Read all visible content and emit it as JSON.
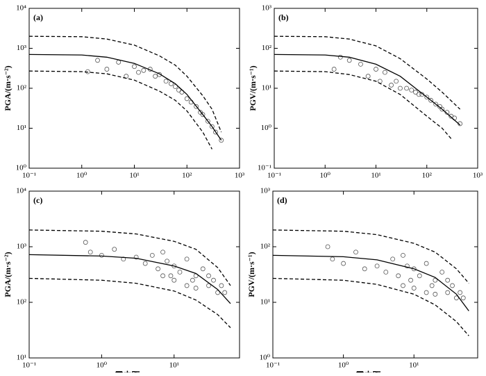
{
  "chart_data": [
    {
      "type": "scatter",
      "label": "(a)",
      "ylabel": "PGA/(m·s⁻²)",
      "xlog": true,
      "ylog": true,
      "xlim": [
        0.1,
        1000
      ],
      "ylim": [
        1,
        10000
      ],
      "xticks": [
        {
          "value": 0.1,
          "label": "10⁻¹"
        },
        {
          "value": 1,
          "label": "10⁰"
        },
        {
          "value": 10,
          "label": "10¹"
        },
        {
          "value": 100,
          "label": "10²"
        },
        {
          "value": 1000,
          "label": "10³"
        }
      ],
      "yticks": [
        {
          "value": 1,
          "label": "10⁰"
        },
        {
          "value": 10,
          "label": "10¹"
        },
        {
          "value": 100,
          "label": "10²"
        },
        {
          "value": 1000,
          "label": "10³"
        },
        {
          "value": 10000,
          "label": "10⁴"
        }
      ],
      "points": {
        "color": "#555555",
        "x": [
          1.3,
          2,
          3,
          5,
          7,
          10,
          12,
          15,
          20,
          25,
          30,
          40,
          50,
          60,
          70,
          80,
          100,
          120,
          150,
          180,
          200,
          250,
          300,
          350,
          450
        ],
        "y": [
          260,
          500,
          300,
          450,
          200,
          350,
          250,
          280,
          300,
          200,
          220,
          150,
          130,
          110,
          90,
          80,
          55,
          45,
          35,
          25,
          22,
          15,
          11,
          8,
          5
        ]
      },
      "curves": [
        {
          "style": "solid",
          "x": [
            0.1,
            1,
            3,
            10,
            30,
            60,
            100,
            200,
            300,
            450
          ],
          "values": [
            700,
            680,
            600,
            420,
            230,
            130,
            70,
            22,
            11,
            5
          ]
        },
        {
          "style": "dashed",
          "x": [
            0.1,
            1,
            3,
            10,
            30,
            60,
            100,
            200,
            300,
            450
          ],
          "values": [
            2000,
            1950,
            1700,
            1200,
            650,
            380,
            200,
            65,
            30,
            8
          ]
        },
        {
          "style": "dashed",
          "x": [
            0.1,
            1,
            3,
            10,
            30,
            60,
            100,
            200,
            300
          ],
          "values": [
            270,
            260,
            230,
            160,
            85,
            50,
            27,
            8,
            3
          ]
        }
      ]
    },
    {
      "type": "scatter",
      "label": "(b)",
      "ylabel": "PGV/(m·s⁻¹)",
      "xlog": true,
      "ylog": true,
      "xlim": [
        0.1,
        1000
      ],
      "ylim": [
        0.1,
        1000
      ],
      "xticks": [
        {
          "value": 0.1,
          "label": "10⁻¹"
        },
        {
          "value": 1,
          "label": "10⁰"
        },
        {
          "value": 10,
          "label": "10¹"
        },
        {
          "value": 100,
          "label": "10²"
        },
        {
          "value": 1000,
          "label": "10³"
        }
      ],
      "yticks": [
        {
          "value": 0.1,
          "label": "10⁻¹"
        },
        {
          "value": 1,
          "label": "10⁰"
        },
        {
          "value": 10,
          "label": "10¹"
        },
        {
          "value": 100,
          "label": "10²"
        },
        {
          "value": 1000,
          "label": "10³"
        }
      ],
      "points": {
        "color": "#555555",
        "x": [
          1.5,
          2,
          3,
          5,
          7,
          10,
          12,
          15,
          20,
          25,
          30,
          40,
          50,
          60,
          70,
          80,
          100,
          120,
          150,
          180,
          200,
          250,
          300,
          350,
          450
        ],
        "y": [
          30,
          60,
          50,
          40,
          20,
          30,
          15,
          25,
          12,
          15,
          10,
          10,
          9,
          8,
          7,
          7,
          6,
          5,
          4,
          3.5,
          3,
          2.5,
          2,
          1.8,
          1.3
        ]
      },
      "curves": [
        {
          "style": "solid",
          "x": [
            0.1,
            1,
            3,
            10,
            30,
            100,
            200,
            450
          ],
          "values": [
            70,
            68,
            60,
            40,
            20,
            6,
            3,
            1.2
          ]
        },
        {
          "style": "dashed",
          "x": [
            0.1,
            1,
            3,
            10,
            30,
            100,
            200,
            450
          ],
          "values": [
            200,
            195,
            170,
            115,
            55,
            17,
            8,
            3
          ]
        },
        {
          "style": "dashed",
          "x": [
            0.1,
            1,
            3,
            10,
            30,
            100,
            200,
            300
          ],
          "values": [
            27,
            26,
            22,
            15,
            7,
            2,
            1,
            0.55
          ]
        }
      ]
    },
    {
      "type": "scatter",
      "label": "(c)",
      "ylabel": "PGA/(m·s⁻²)",
      "xlabel": "震中距/km",
      "xlog": true,
      "ylog": true,
      "xlim": [
        0.1,
        80
      ],
      "ylim": [
        10,
        10000
      ],
      "xticks": [
        {
          "value": 0.1,
          "label": "10⁻¹"
        },
        {
          "value": 1,
          "label": "10⁰"
        },
        {
          "value": 10,
          "label": "10¹"
        }
      ],
      "yticks": [
        {
          "value": 10,
          "label": "10¹"
        },
        {
          "value": 100,
          "label": "10²"
        },
        {
          "value": 1000,
          "label": "10³"
        },
        {
          "value": 10000,
          "label": "10⁴"
        }
      ],
      "points": {
        "color": "#555555",
        "x": [
          0.6,
          0.7,
          1,
          1.5,
          2,
          3,
          4,
          5,
          6,
          7,
          8,
          9,
          10,
          12,
          15,
          18,
          20,
          25,
          30,
          35,
          40,
          45,
          50,
          7,
          10,
          15,
          20,
          30
        ],
        "y": [
          1200,
          800,
          700,
          900,
          600,
          650,
          500,
          700,
          400,
          800,
          550,
          300,
          450,
          350,
          600,
          250,
          300,
          400,
          200,
          250,
          150,
          200,
          150,
          300,
          250,
          200,
          180,
          300
        ]
      },
      "curves": [
        {
          "style": "solid",
          "x": [
            0.1,
            1,
            3,
            10,
            20,
            40,
            60
          ],
          "values": [
            720,
            680,
            620,
            450,
            330,
            170,
            95
          ]
        },
        {
          "style": "dashed",
          "x": [
            0.1,
            1,
            3,
            10,
            20,
            40,
            60
          ],
          "values": [
            2000,
            1900,
            1700,
            1250,
            900,
            420,
            200
          ]
        },
        {
          "style": "dashed",
          "x": [
            0.1,
            1,
            3,
            10,
            20,
            40,
            60
          ],
          "values": [
            270,
            250,
            220,
            160,
            110,
            60,
            35
          ]
        }
      ]
    },
    {
      "type": "scatter",
      "label": "(d)",
      "ylabel": "PGV/(m·s⁻¹)",
      "xlabel": "震中距/km",
      "xlog": true,
      "ylog": true,
      "xlim": [
        0.1,
        80
      ],
      "ylim": [
        1,
        1000
      ],
      "xticks": [
        {
          "value": 0.1,
          "label": "10⁻¹"
        },
        {
          "value": 1,
          "label": "10⁰"
        },
        {
          "value": 10,
          "label": "10¹"
        }
      ],
      "yticks": [
        {
          "value": 1,
          "label": "10⁰"
        },
        {
          "value": 10,
          "label": "10¹"
        },
        {
          "value": 100,
          "label": "10²"
        },
        {
          "value": 1000,
          "label": "10³"
        }
      ],
      "points": {
        "color": "#555555",
        "x": [
          0.6,
          0.7,
          1,
          1.5,
          2,
          3,
          4,
          5,
          6,
          7,
          8,
          9,
          10,
          12,
          15,
          18,
          20,
          25,
          30,
          35,
          40,
          45,
          50,
          7,
          10,
          15,
          20,
          30
        ],
        "y": [
          100,
          60,
          50,
          80,
          40,
          45,
          35,
          60,
          30,
          70,
          45,
          25,
          40,
          30,
          50,
          20,
          25,
          35,
          15,
          20,
          12,
          15,
          12,
          20,
          18,
          15,
          14,
          25
        ]
      },
      "curves": [
        {
          "style": "solid",
          "x": [
            0.1,
            1,
            3,
            10,
            20,
            40,
            60
          ],
          "values": [
            70,
            66,
            58,
            40,
            28,
            14,
            7
          ]
        },
        {
          "style": "dashed",
          "x": [
            0.1,
            1,
            3,
            10,
            20,
            40,
            60
          ],
          "values": [
            200,
            190,
            165,
            115,
            80,
            40,
            22
          ]
        },
        {
          "style": "dashed",
          "x": [
            0.1,
            1,
            3,
            10,
            20,
            40,
            60
          ],
          "values": [
            27,
            25,
            21,
            14,
            9,
            4.5,
            2.5
          ]
        }
      ]
    }
  ]
}
